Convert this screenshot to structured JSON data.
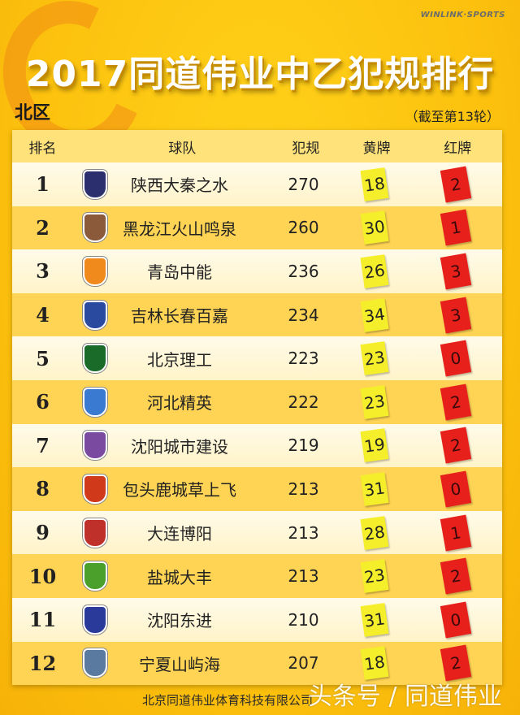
{
  "brand": "WINLINK·SPORTS",
  "title": "2017同道伟业中乙犯规排行",
  "region": "北区",
  "as_of": "（截至第13轮）",
  "headers": {
    "rank": "排名",
    "team": "球队",
    "fouls": "犯规",
    "yellow": "黄牌",
    "red": "红牌"
  },
  "rows": [
    {
      "rank": "1",
      "team": "陕西大秦之水",
      "fouls": "270",
      "yellow": "18",
      "red": "2",
      "logo_color": "#2b2f6e"
    },
    {
      "rank": "2",
      "team": "黑龙江火山鸣泉",
      "fouls": "260",
      "yellow": "30",
      "red": "1",
      "logo_color": "#8a5a3a"
    },
    {
      "rank": "3",
      "team": "青岛中能",
      "fouls": "236",
      "yellow": "26",
      "red": "3",
      "logo_color": "#f08a1c"
    },
    {
      "rank": "4",
      "team": "吉林长春百嘉",
      "fouls": "234",
      "yellow": "34",
      "red": "3",
      "logo_color": "#2a4aa0"
    },
    {
      "rank": "5",
      "team": "北京理工",
      "fouls": "223",
      "yellow": "23",
      "red": "0",
      "logo_color": "#1a6a2a"
    },
    {
      "rank": "6",
      "team": "河北精英",
      "fouls": "222",
      "yellow": "23",
      "red": "2",
      "logo_color": "#3a7ad0"
    },
    {
      "rank": "7",
      "team": "沈阳城市建设",
      "fouls": "219",
      "yellow": "19",
      "red": "2",
      "logo_color": "#7a4aa0"
    },
    {
      "rank": "8",
      "team": "包头鹿城草上飞",
      "fouls": "213",
      "yellow": "31",
      "red": "0",
      "logo_color": "#d03a1a"
    },
    {
      "rank": "9",
      "team": "大连博阳",
      "fouls": "213",
      "yellow": "28",
      "red": "1",
      "logo_color": "#c0302a"
    },
    {
      "rank": "10",
      "team": "盐城大丰",
      "fouls": "213",
      "yellow": "23",
      "red": "2",
      "logo_color": "#4aa02a"
    },
    {
      "rank": "11",
      "team": "沈阳东进",
      "fouls": "210",
      "yellow": "31",
      "red": "0",
      "logo_color": "#2a3a9a"
    },
    {
      "rank": "12",
      "team": "宁夏山屿海",
      "fouls": "207",
      "yellow": "18",
      "red": "2",
      "logo_color": "#5a7aa0"
    }
  ],
  "footer": "北京同道伟业体育科技有限公司",
  "watermark": "头条号 / 同道伟业"
}
